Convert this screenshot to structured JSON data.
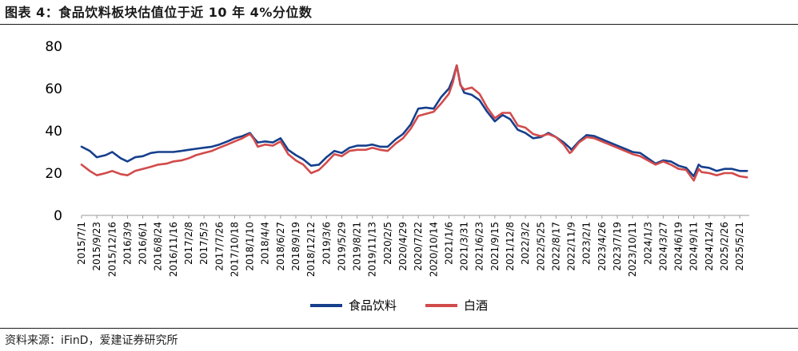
{
  "title": "图表 4：食品饮料板块估值位于近 10 年 4%分位数",
  "source": "资料来源：iFinD，爱建证券研究所",
  "chart_data": {
    "type": "line",
    "title": "图表 4：食品饮料板块估值位于近 10 年 4%分位数",
    "xlabel": "",
    "ylabel": "",
    "ylim": [
      0,
      80
    ],
    "yticks": [
      0,
      20,
      40,
      60,
      80
    ],
    "grid": false,
    "legend_position": "bottom",
    "x_tick_labels": [
      "2015/7/1",
      "2015/9/23",
      "2015/12/16",
      "2016/3/9",
      "2016/6/1",
      "2016/8/24",
      "2016/11/16",
      "2017/2/8",
      "2017/5/3",
      "2017/7/26",
      "2017/10/18",
      "2018/1/10",
      "2018/4/4",
      "2018/6/27",
      "2018/9/19",
      "2018/12/12",
      "2019/3/6",
      "2019/5/29",
      "2019/8/21",
      "2019/11/13",
      "2020/2/5",
      "2020/4/29",
      "2020/7/22",
      "2020/10/14",
      "2021/1/6",
      "2021/3/31",
      "2021/6/23",
      "2021/9/15",
      "2021/12/8",
      "2022/3/2",
      "2022/5/25",
      "2022/8/17",
      "2022/11/9",
      "2023/2/1",
      "2023/4/26",
      "2023/7/19",
      "2023/10/11",
      "2024/1/3",
      "2024/3/27",
      "2024/6/19",
      "2024/9/11",
      "2024/12/4",
      "2025/2/26",
      "2025/5/21"
    ],
    "x": [
      "2015/7/1",
      "2015/8/15",
      "2015/9/23",
      "2015/11/10",
      "2015/12/16",
      "2016/2/1",
      "2016/3/9",
      "2016/4/20",
      "2016/6/1",
      "2016/7/15",
      "2016/8/24",
      "2016/10/10",
      "2016/11/16",
      "2016/12/30",
      "2017/2/8",
      "2017/3/20",
      "2017/5/3",
      "2017/6/15",
      "2017/7/26",
      "2017/9/8",
      "2017/10/18",
      "2017/11/30",
      "2018/1/10",
      "2018/2/1",
      "2018/2/22",
      "2018/4/4",
      "2018/5/15",
      "2018/6/27",
      "2018/8/8",
      "2018/9/19",
      "2018/10/30",
      "2018/12/12",
      "2019/1/24",
      "2019/3/6",
      "2019/4/18",
      "2019/5/29",
      "2019/7/10",
      "2019/8/21",
      "2019/10/8",
      "2019/11/13",
      "2019/12/25",
      "2020/2/5",
      "2020/3/20",
      "2020/4/29",
      "2020/6/10",
      "2020/7/22",
      "2020/9/1",
      "2020/10/14",
      "2020/11/25",
      "2021/1/6",
      "2021/1/28",
      "2021/2/18",
      "2021/3/10",
      "2021/3/31",
      "2021/5/12",
      "2021/6/23",
      "2021/8/4",
      "2021/9/15",
      "2021/10/27",
      "2021/12/8",
      "2022/1/19",
      "2022/3/2",
      "2022/4/13",
      "2022/5/25",
      "2022/7/6",
      "2022/8/17",
      "2022/9/28",
      "2022/10/31",
      "2022/11/9",
      "2022/12/21",
      "2023/2/1",
      "2023/3/15",
      "2023/4/26",
      "2023/6/7",
      "2023/7/19",
      "2023/8/30",
      "2023/10/11",
      "2023/11/22",
      "2024/1/3",
      "2024/2/14",
      "2024/3/27",
      "2024/5/8",
      "2024/6/19",
      "2024/7/31",
      "2024/9/11",
      "2024/10/8",
      "2024/10/23",
      "2024/12/4",
      "2025/1/15",
      "2025/2/26",
      "2025/4/9",
      "2025/5/21",
      "2025/6/30"
    ],
    "series": [
      {
        "name": "食品饮料",
        "color": "#163f8c",
        "values": [
          32.5,
          30.5,
          27.5,
          28.5,
          30.0,
          27.0,
          25.5,
          27.5,
          28.0,
          29.5,
          30.0,
          30.0,
          30.0,
          30.5,
          31.0,
          31.5,
          32.0,
          32.5,
          33.5,
          35.0,
          36.5,
          37.5,
          39.0,
          36.5,
          34.5,
          35.0,
          34.5,
          36.5,
          31.0,
          28.5,
          26.5,
          23.5,
          24.0,
          27.5,
          30.5,
          29.5,
          32.0,
          33.0,
          33.0,
          33.5,
          32.5,
          32.5,
          36.0,
          38.5,
          43.0,
          50.5,
          51.0,
          50.5,
          56.0,
          60.0,
          64.5,
          71.0,
          62.0,
          58.0,
          57.0,
          54.5,
          49.0,
          44.5,
          47.5,
          45.5,
          40.5,
          39.0,
          36.5,
          37.0,
          39.0,
          37.0,
          34.5,
          32.0,
          31.0,
          35.0,
          38.0,
          37.5,
          36.0,
          34.5,
          33.0,
          31.5,
          30.0,
          29.5,
          27.0,
          24.5,
          26.0,
          25.5,
          23.5,
          22.5,
          18.5,
          24.0,
          23.0,
          22.5,
          21.0,
          22.0,
          22.0,
          21.0,
          21.0
        ]
      },
      {
        "name": "白酒",
        "color": "#d24b4b",
        "values": [
          24.0,
          21.0,
          19.0,
          20.0,
          21.0,
          19.5,
          19.0,
          21.0,
          22.0,
          23.0,
          24.0,
          24.5,
          25.5,
          26.0,
          27.0,
          28.5,
          29.5,
          30.5,
          32.0,
          33.5,
          35.0,
          36.5,
          38.5,
          36.0,
          32.5,
          33.5,
          33.0,
          35.0,
          29.0,
          26.0,
          24.0,
          20.0,
          21.5,
          25.0,
          29.0,
          28.0,
          30.5,
          31.0,
          31.0,
          32.0,
          31.0,
          30.5,
          34.0,
          36.5,
          41.0,
          47.0,
          48.0,
          49.0,
          53.0,
          57.5,
          63.0,
          71.0,
          61.5,
          59.5,
          60.5,
          57.5,
          51.0,
          46.0,
          48.5,
          48.5,
          42.5,
          41.5,
          38.5,
          37.5,
          38.5,
          37.0,
          33.5,
          29.5,
          30.0,
          34.5,
          37.0,
          36.5,
          35.0,
          33.5,
          32.0,
          30.5,
          29.0,
          28.0,
          26.0,
          24.0,
          25.5,
          24.0,
          22.0,
          21.5,
          16.5,
          22.0,
          20.5,
          20.0,
          19.0,
          20.0,
          20.0,
          18.5,
          18.0
        ]
      }
    ]
  }
}
